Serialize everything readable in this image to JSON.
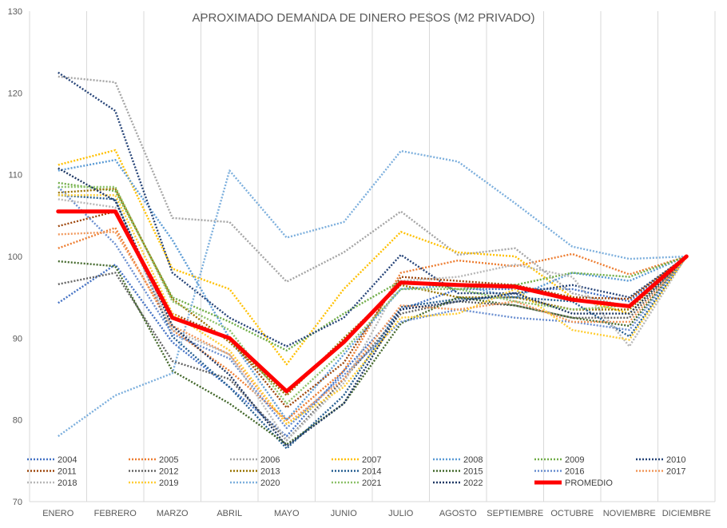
{
  "chart_data": {
    "type": "line",
    "title": "APROXIMADO DEMANDA DE DINERO PESOS (M2 PRIVADO)",
    "xlabel": "",
    "ylabel": "",
    "ylim": [
      70,
      130
    ],
    "yticks": [
      70,
      80,
      90,
      100,
      110,
      120,
      130
    ],
    "grid": "vertical",
    "legend_position": "bottom",
    "categories": [
      "ENERO",
      "FEBRERO",
      "MARZO",
      "ABRIL",
      "MAYO",
      "JUNIO",
      "JULIO",
      "AGOSTO",
      "SEPTIEMBRE",
      "OCTUBRE",
      "NOVIEMBRE",
      "DICIEMBRE"
    ],
    "series": [
      {
        "name": "2004",
        "color": "#4472C4",
        "style": "dotted",
        "values": [
          94.3,
          99.0,
          89.5,
          84.0,
          78.0,
          86.0,
          93.5,
          96.0,
          96.0,
          96.0,
          94.5,
          100
        ]
      },
      {
        "name": "2005",
        "color": "#ED7D31",
        "style": "dotted",
        "values": [
          101.0,
          103.5,
          91.0,
          86.0,
          80.0,
          86.0,
          98.0,
          99.5,
          98.8,
          100.3,
          97.8,
          100
        ]
      },
      {
        "name": "2006",
        "color": "#A5A5A5",
        "style": "dotted",
        "values": [
          122.0,
          121.3,
          104.7,
          104.2,
          96.9,
          100.5,
          105.5,
          100.2,
          101.0,
          95.5,
          93.8,
          100
        ]
      },
      {
        "name": "2007",
        "color": "#FFC000",
        "style": "dotted",
        "values": [
          111.2,
          113.0,
          98.5,
          96.0,
          86.8,
          96.0,
          103.0,
          100.5,
          100.0,
          95.0,
          93.0,
          100
        ]
      },
      {
        "name": "2008",
        "color": "#5B9BD5",
        "style": "dotted",
        "values": [
          110.5,
          111.8,
          102.0,
          90.0,
          80.0,
          88.0,
          96.0,
          96.5,
          95.0,
          98.0,
          97.0,
          100
        ]
      },
      {
        "name": "2009",
        "color": "#70AD47",
        "style": "dotted",
        "values": [
          109.0,
          108.0,
          95.0,
          92.0,
          88.5,
          93.0,
          97.0,
          96.0,
          96.5,
          98.0,
          97.5,
          100
        ]
      },
      {
        "name": "2010",
        "color": "#264478",
        "style": "dotted",
        "values": [
          122.5,
          117.8,
          98.0,
          92.5,
          89.0,
          92.5,
          100.2,
          95.5,
          95.5,
          96.5,
          95.0,
          100
        ]
      },
      {
        "name": "2011",
        "color": "#9E480E",
        "style": "dotted",
        "values": [
          103.7,
          105.5,
          93.0,
          90.0,
          81.5,
          87.0,
          97.5,
          97.0,
          96.5,
          95.0,
          94.8,
          100
        ]
      },
      {
        "name": "2012",
        "color": "#636363",
        "style": "dotted",
        "values": [
          96.6,
          98.0,
          87.2,
          85.0,
          77.5,
          85.0,
          93.0,
          94.5,
          94.0,
          92.5,
          92.5,
          100
        ]
      },
      {
        "name": "2013",
        "color": "#997300",
        "style": "dotted",
        "values": [
          107.8,
          108.3,
          94.8,
          89.5,
          83.0,
          90.0,
          96.5,
          95.0,
          95.0,
          93.5,
          93.5,
          100
        ]
      },
      {
        "name": "2014",
        "color": "#255E91",
        "style": "dotted",
        "values": [
          107.5,
          107.0,
          90.2,
          84.0,
          76.5,
          83.0,
          93.8,
          94.8,
          95.0,
          94.5,
          90.2,
          100
        ]
      },
      {
        "name": "2015",
        "color": "#43682B",
        "style": "dotted",
        "values": [
          99.4,
          98.8,
          86.0,
          82.0,
          77.0,
          82.0,
          91.8,
          95.0,
          94.0,
          92.5,
          91.5,
          100
        ]
      },
      {
        "name": "2016",
        "color": "#698ED0",
        "style": "dotted",
        "values": [
          108.5,
          101.5,
          90.5,
          87.5,
          79.0,
          85.5,
          92.0,
          93.5,
          92.5,
          92.0,
          91.0,
          100
        ]
      },
      {
        "name": "2017",
        "color": "#F1975A",
        "style": "dotted",
        "values": [
          102.7,
          103.0,
          91.5,
          88.0,
          79.5,
          85.0,
          94.0,
          93.5,
          94.5,
          92.0,
          92.0,
          100
        ]
      },
      {
        "name": "2018",
        "color": "#B7B7B7",
        "style": "dotted",
        "values": [
          107.0,
          106.0,
          91.0,
          88.0,
          77.5,
          84.5,
          97.0,
          97.5,
          99.0,
          97.5,
          89.0,
          100
        ]
      },
      {
        "name": "2019",
        "color": "#FFCD33",
        "style": "dotted",
        "values": [
          107.5,
          107.5,
          93.0,
          88.5,
          79.5,
          84.0,
          92.5,
          93.0,
          96.0,
          91.0,
          89.8,
          100
        ]
      },
      {
        "name": "2020",
        "color": "#7CAFDD",
        "style": "dotted",
        "values": [
          78.0,
          83.0,
          85.7,
          110.5,
          102.3,
          104.2,
          112.9,
          111.6,
          106.5,
          101.2,
          99.7,
          100
        ]
      },
      {
        "name": "2021",
        "color": "#8CC168",
        "style": "dotted",
        "values": [
          108.5,
          108.5,
          94.5,
          91.0,
          82.0,
          88.5,
          96.0,
          96.0,
          94.5,
          93.5,
          94.0,
          100
        ]
      },
      {
        "name": "2022",
        "color": "#1F3864",
        "style": "dotted",
        "values": [
          110.8,
          106.8,
          91.5,
          85.5,
          76.8,
          82.0,
          93.5,
          94.5,
          95.5,
          93.0,
          93.0,
          100
        ]
      },
      {
        "name": "PROMEDIO",
        "color": "#FF0000",
        "style": "solid",
        "values": [
          105.5,
          105.5,
          92.5,
          90.0,
          83.5,
          89.5,
          96.8,
          96.5,
          96.3,
          94.7,
          93.9,
          100
        ]
      }
    ]
  }
}
